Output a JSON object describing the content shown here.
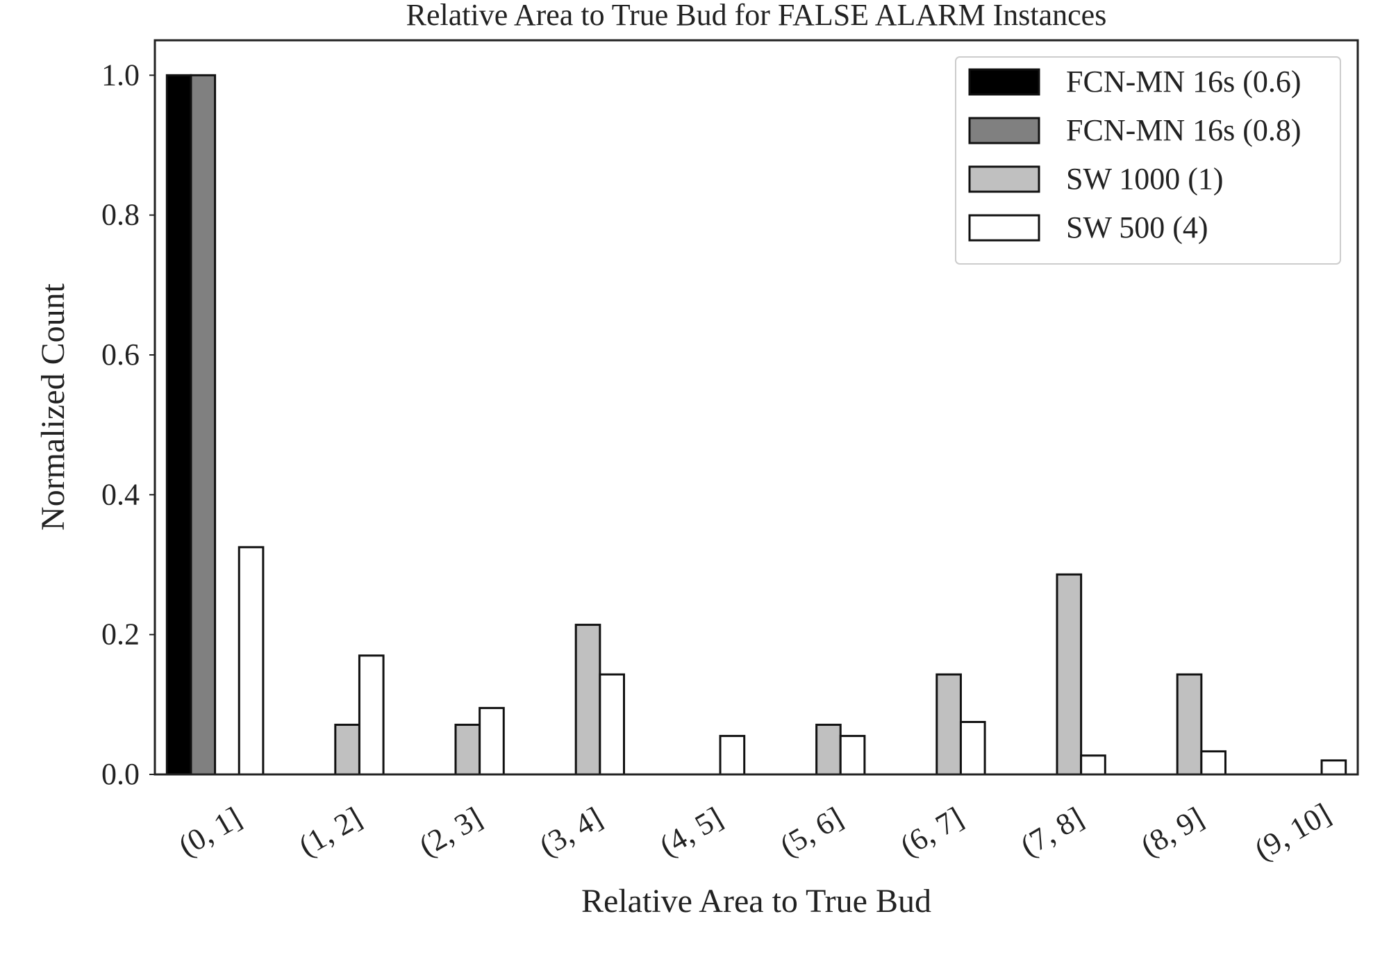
{
  "chart_data": {
    "type": "bar",
    "title": "Relative Area to True Bud for FALSE ALARM Instances",
    "xlabel": "Relative Area to True Bud",
    "ylabel": "Normalized Count",
    "ylim": [
      0,
      1.05
    ],
    "yticks": [
      "0.0",
      "0.2",
      "0.4",
      "0.6",
      "0.8",
      "1.0"
    ],
    "categories": [
      "(0, 1]",
      "(1, 2]",
      "(2, 3]",
      "(3, 4]",
      "(4, 5]",
      "(5, 6]",
      "(6, 7]",
      "(7, 8]",
      "(8, 9]",
      "(9, 10]"
    ],
    "series": [
      {
        "name": "FCN-MN 16s (0.6)",
        "color": "#000000",
        "values": [
          1.0,
          0,
          0,
          0,
          0,
          0,
          0,
          0,
          0,
          0
        ]
      },
      {
        "name": "FCN-MN 16s (0.8)",
        "color": "#808080",
        "values": [
          1.0,
          0,
          0,
          0,
          0,
          0,
          0,
          0,
          0,
          0
        ]
      },
      {
        "name": "SW 1000 (1)",
        "color": "#c0c0c0",
        "values": [
          0,
          0.071,
          0.071,
          0.214,
          0,
          0.071,
          0.143,
          0.286,
          0.143,
          0
        ]
      },
      {
        "name": "SW 500 (4)",
        "color": "#ffffff",
        "values": [
          0.325,
          0.17,
          0.095,
          0.143,
          0.055,
          0.055,
          0.075,
          0.027,
          0.033,
          0.02
        ]
      }
    ],
    "grid": false,
    "legend": "top-right"
  }
}
